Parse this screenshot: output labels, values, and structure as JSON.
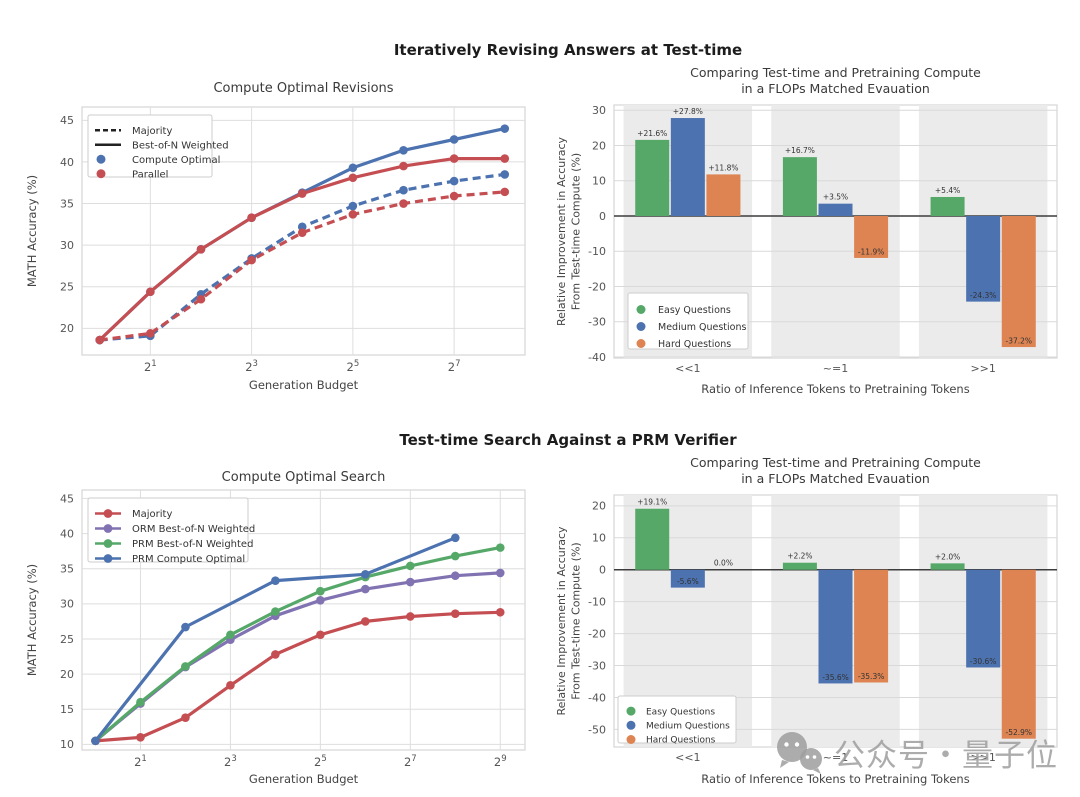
{
  "page": {
    "background": "#ffffff",
    "watermark": {
      "icon": "wechat-icon",
      "text": "公众号・量子位",
      "color": "#9e9e9e"
    }
  },
  "palette": {
    "blue": "#4C72B0",
    "red": "#C44E52",
    "green": "#55A868",
    "orange": "#DD8452",
    "purple": "#8172B2"
  },
  "sections": {
    "top": {
      "title": "Iteratively Revising Answers at Test-time"
    },
    "bottom": {
      "title": "Test-time Search Against a PRM Verifier"
    }
  },
  "chart_data": [
    {
      "id": "compute-optimal-revisions",
      "type": "line",
      "title": "Compute Optimal Revisions",
      "xlabel": "Generation Budget",
      "ylabel": "MATH Accuracy (%)",
      "x_scale": "log2",
      "xtick_base": "2",
      "xticks_exp": [
        1,
        3,
        5,
        7
      ],
      "xlim": [
        -0.35,
        8.4
      ],
      "ylim": [
        16.8,
        46.6
      ],
      "yticks": [
        20,
        25,
        30,
        35,
        40,
        45
      ],
      "grid": true,
      "legend": {
        "position": "upper-left",
        "items": [
          {
            "label": "Majority",
            "marker": "line-dashed",
            "color": "#222222"
          },
          {
            "label": "Best-of-N Weighted",
            "marker": "line-solid",
            "color": "#222222"
          },
          {
            "label": "Compute Optimal",
            "marker": "dot",
            "color": "#4C72B0"
          },
          {
            "label": "Parallel",
            "marker": "dot",
            "color": "#C44E52"
          }
        ]
      },
      "series": [
        {
          "name": "Compute Optimal Best-of-N Weighted",
          "color": "#4C72B0",
          "dash": false,
          "x": [
            0,
            1,
            2,
            3,
            4,
            5,
            6,
            7,
            8
          ],
          "y": [
            18.6,
            24.4,
            29.5,
            33.3,
            36.3,
            39.3,
            41.4,
            42.7,
            44.0
          ]
        },
        {
          "name": "Parallel Best-of-N Weighted",
          "color": "#C44E52",
          "dash": false,
          "x": [
            0,
            1,
            2,
            3,
            4,
            5,
            6,
            7,
            8
          ],
          "y": [
            18.6,
            24.4,
            29.5,
            33.3,
            36.2,
            38.1,
            39.5,
            40.4,
            40.4
          ]
        },
        {
          "name": "Compute Optimal Majority",
          "color": "#4C72B0",
          "dash": true,
          "x": [
            0,
            1,
            2,
            3,
            4,
            5,
            6,
            7,
            8
          ],
          "y": [
            18.6,
            19.1,
            24.1,
            28.4,
            32.2,
            34.7,
            36.6,
            37.7,
            38.5
          ]
        },
        {
          "name": "Parallel Majority",
          "color": "#C44E52",
          "dash": true,
          "x": [
            0,
            1,
            2,
            3,
            4,
            5,
            6,
            7,
            8
          ],
          "y": [
            18.6,
            19.4,
            23.5,
            28.2,
            31.5,
            33.7,
            35.0,
            35.9,
            36.4
          ]
        }
      ]
    },
    {
      "id": "flops-matched-revisions",
      "type": "bar",
      "title_lines": [
        "Comparing Test-time and Pretraining Compute",
        "in a FLOPs Matched Evauation"
      ],
      "xlabel": "Ratio of Inference Tokens to Pretraining Tokens",
      "ylabel_lines": [
        "Relative Improvement in Accuracy",
        "From Test-time Compute (%)"
      ],
      "categories": [
        "<<1",
        "~=1",
        ">>1"
      ],
      "ylim": [
        -40.3,
        31.5
      ],
      "yticks": [
        30,
        20,
        10,
        0,
        -10,
        -20,
        -30,
        -40
      ],
      "band_color": "#ebebeb",
      "series": [
        {
          "name": "Easy Questions",
          "color": "#55A868",
          "values": [
            21.6,
            16.7,
            5.4
          ],
          "labels": [
            "+21.6%",
            "+16.7%",
            "+5.4%"
          ]
        },
        {
          "name": "Medium Questions",
          "color": "#4C72B0",
          "values": [
            27.8,
            3.5,
            -24.3
          ],
          "labels": [
            "+27.8%",
            "+3.5%",
            "-24.3%"
          ]
        },
        {
          "name": "Hard Questions",
          "color": "#DD8452",
          "values": [
            11.8,
            -11.9,
            -37.2
          ],
          "labels": [
            "+11.8%",
            "-11.9%",
            "-37.2%"
          ]
        }
      ],
      "legend": {
        "position": "lower-left",
        "items": [
          {
            "label": "Easy Questions",
            "marker": "dot",
            "color": "#55A868"
          },
          {
            "label": "Medium Questions",
            "marker": "dot",
            "color": "#4C72B0"
          },
          {
            "label": "Hard Questions",
            "marker": "dot",
            "color": "#DD8452"
          }
        ]
      }
    },
    {
      "id": "compute-optimal-search",
      "type": "line",
      "title": "Compute Optimal Search",
      "xlabel": "Generation Budget",
      "ylabel": "MATH Accuracy (%)",
      "x_scale": "log2",
      "xtick_base": "2",
      "xticks_exp": [
        1,
        3,
        5,
        7,
        9
      ],
      "xlim": [
        -0.3,
        9.55
      ],
      "ylim": [
        9.2,
        46.2
      ],
      "yticks": [
        10,
        15,
        20,
        25,
        30,
        35,
        40,
        45
      ],
      "grid": true,
      "legend": {
        "position": "upper-left",
        "items": [
          {
            "label": "Majority",
            "marker": "line-dot",
            "color": "#C44E52"
          },
          {
            "label": "ORM Best-of-N Weighted",
            "marker": "line-dot",
            "color": "#8172B2"
          },
          {
            "label": "PRM Best-of-N Weighted",
            "marker": "line-dot",
            "color": "#55A868"
          },
          {
            "label": "PRM Compute Optimal",
            "marker": "line-dot",
            "color": "#4C72B0"
          }
        ]
      },
      "series": [
        {
          "name": "ORM Best-of-N Weighted",
          "color": "#8172B2",
          "dash": false,
          "x": [
            0,
            1,
            2,
            3,
            4,
            5,
            6,
            7,
            8,
            9
          ],
          "y": [
            10.5,
            15.8,
            21.0,
            24.9,
            28.3,
            30.5,
            32.1,
            33.1,
            34.0,
            34.4
          ]
        },
        {
          "name": "PRM Best-of-N Weighted",
          "color": "#55A868",
          "dash": false,
          "x": [
            0,
            1,
            2,
            3,
            4,
            5,
            6,
            7,
            8,
            9
          ],
          "y": [
            10.5,
            16.0,
            21.1,
            25.6,
            28.9,
            31.8,
            33.8,
            35.4,
            36.8,
            38.0
          ]
        },
        {
          "name": "Majority",
          "color": "#C44E52",
          "dash": false,
          "x": [
            0,
            1,
            2,
            3,
            4,
            5,
            6,
            7,
            8,
            9
          ],
          "y": [
            10.5,
            11.0,
            13.8,
            18.4,
            22.8,
            25.6,
            27.5,
            28.2,
            28.6,
            28.8
          ]
        },
        {
          "name": "PRM Compute Optimal",
          "color": "#4C72B0",
          "dash": false,
          "x": [
            0,
            2,
            4,
            6,
            8
          ],
          "y": [
            10.5,
            26.7,
            33.3,
            34.2,
            39.4
          ]
        }
      ]
    },
    {
      "id": "flops-matched-search",
      "type": "bar",
      "title_lines": [
        "Comparing Test-time and Pretraining Compute",
        "in a FLOPs Matched Evauation"
      ],
      "xlabel": "Ratio of Inference Tokens to Pretraining Tokens",
      "ylabel_lines": [
        "Relative Improvement in Accuracy",
        "From Test-time Compute (%)"
      ],
      "categories": [
        "<<1",
        "~=1",
        ">>1"
      ],
      "ylim": [
        -55.5,
        23.4
      ],
      "yticks": [
        20,
        10,
        0,
        -10,
        -20,
        -30,
        -40,
        -50
      ],
      "band_color": "#ebebeb",
      "series": [
        {
          "name": "Easy Questions",
          "color": "#55A868",
          "values": [
            19.1,
            2.2,
            2.0
          ],
          "labels": [
            "+19.1%",
            "+2.2%",
            "+2.0%"
          ]
        },
        {
          "name": "Medium Questions",
          "color": "#4C72B0",
          "values": [
            -5.6,
            -35.6,
            -30.6
          ],
          "labels": [
            "-5.6%",
            "-35.6%",
            "-30.6%"
          ]
        },
        {
          "name": "Hard Questions",
          "color": "#DD8452",
          "values": [
            0.0,
            -35.3,
            -52.9
          ],
          "labels": [
            "0.0%",
            "-35.3%",
            "-52.9%"
          ]
        }
      ],
      "legend": {
        "position": "lower-left",
        "items": [
          {
            "label": "Easy Questions",
            "marker": "dot",
            "color": "#55A868"
          },
          {
            "label": "Medium Questions",
            "marker": "dot",
            "color": "#4C72B0"
          },
          {
            "label": "Hard Questions",
            "marker": "dot",
            "color": "#DD8452"
          }
        ]
      }
    }
  ]
}
